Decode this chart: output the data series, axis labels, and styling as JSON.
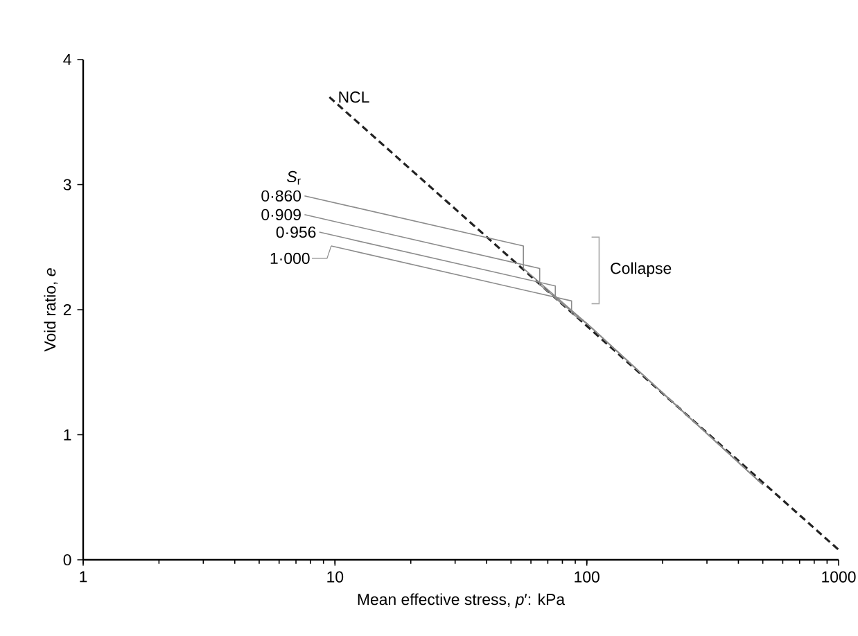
{
  "chart_data": {
    "type": "line",
    "xlabel": "Mean effective stress, *p*′: kPa",
    "ylabel": "Void ratio, *e*",
    "legend_title": "*S*$_{r}$",
    "log": "x",
    "xlim": [
      1,
      1000
    ],
    "xticks": [
      1,
      10,
      100,
      1000
    ],
    "ylim": [
      0,
      4
    ],
    "yticks": [
      0,
      1,
      2,
      3,
      4
    ],
    "grid": false,
    "marker": "none",
    "series": [
      {
        "name": "NCL",
        "color": "#222222",
        "line_style": "dashed",
        "x": [
          9.5,
          1000
        ],
        "values": [
          3.7,
          0.08
        ]
      },
      {
        "name": "0·860",
        "color": "#8c8c8c",
        "line_style": "solid",
        "x": [
          7.57,
          56,
          56,
          100,
          500
        ],
        "values": [
          2.91,
          2.51,
          2.33,
          1.89,
          0.6
        ]
      },
      {
        "name": "0·909",
        "color": "#8c8c8c",
        "line_style": "solid",
        "x": [
          7.57,
          65,
          65,
          100,
          500
        ],
        "values": [
          2.76,
          2.33,
          2.2,
          1.89,
          0.6
        ]
      },
      {
        "name": "0·956",
        "color": "#8c8c8c",
        "line_style": "solid",
        "x": [
          8.67,
          75,
          75,
          100,
          500
        ],
        "values": [
          2.62,
          2.19,
          2.09,
          1.89,
          0.6
        ]
      },
      {
        "name": "1·000",
        "color": "#8c8c8c",
        "line_style": "solid",
        "x": [
          9.66,
          87,
          87,
          100,
          500
        ],
        "values": [
          2.51,
          2.07,
          1.97,
          1.89,
          0.6
        ]
      }
    ],
    "annotations": [
      "Collapse"
    ]
  }
}
